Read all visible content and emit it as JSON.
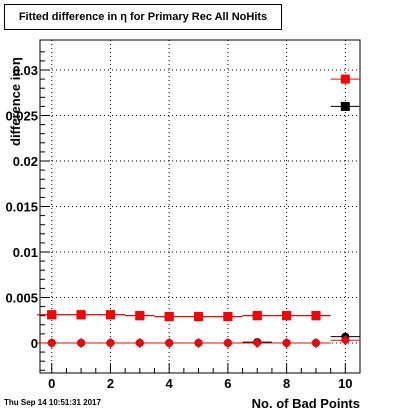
{
  "title": "Fitted difference in η for Primary Rec All NoHits",
  "timestamp": "Thu Sep 14 10:51:31 2017",
  "chart_data": {
    "type": "scatter",
    "xlabel": "No. of Bad Points",
    "ylabel": "difference in η",
    "xlim": [
      -0.4,
      10.5
    ],
    "ylim": [
      -0.0033,
      0.0333
    ],
    "x_ticks": [
      0,
      2,
      4,
      6,
      8,
      10
    ],
    "x_tick_labels": [
      "0",
      "2",
      "4",
      "6",
      "8",
      "10"
    ],
    "y_ticks": [
      0,
      0.005,
      0.01,
      0.015,
      0.02,
      0.025,
      0.03
    ],
    "y_tick_labels": [
      "0",
      "0.005",
      "0.01",
      "0.015",
      "0.02",
      "0.025",
      "0.03"
    ],
    "grid": true,
    "series": [
      {
        "color": "#000000",
        "marker": "square",
        "x": [
          0,
          1,
          2,
          3,
          4,
          5,
          6,
          7,
          8,
          9,
          10
        ],
        "y": [
          0.0031,
          0.0031,
          0.0031,
          0.003,
          0.0029,
          0.0029,
          0.0029,
          0.003,
          0.003,
          0.003,
          0.026
        ]
      },
      {
        "color": "#ff0000",
        "marker": "square",
        "x": [
          0,
          1,
          2,
          3,
          4,
          5,
          6,
          7,
          8,
          9,
          10
        ],
        "y": [
          0.0031,
          0.0031,
          0.0031,
          0.003,
          0.0029,
          0.0029,
          0.0029,
          0.003,
          0.003,
          0.003,
          0.029
        ]
      },
      {
        "color": "#000000",
        "marker": "circle",
        "x": [
          0,
          1,
          2,
          3,
          4,
          5,
          6,
          7,
          8,
          9,
          10
        ],
        "y": [
          0,
          0,
          0,
          0,
          0,
          0,
          0,
          0.0001,
          0,
          0,
          0.0007
        ]
      },
      {
        "color": "#ff0000",
        "marker": "diamond",
        "x": [
          0,
          1,
          2,
          3,
          4,
          5,
          6,
          7,
          8,
          9,
          10
        ],
        "y": [
          0,
          0,
          0,
          0,
          0,
          0,
          0,
          0,
          0,
          0,
          0.0003
        ]
      }
    ]
  }
}
